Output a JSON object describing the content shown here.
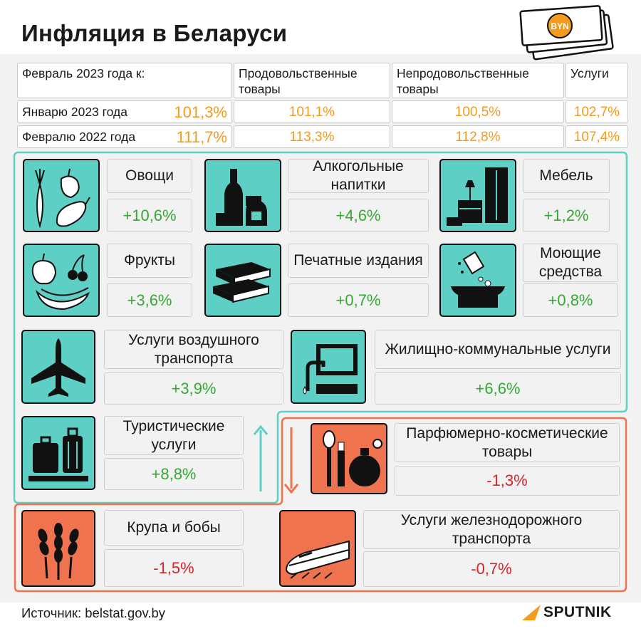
{
  "title": "Инфляция в Беларуси",
  "currency_badge": "BYN",
  "colors": {
    "teal": "#5ecfc4",
    "coral": "#f0734f",
    "orange_value": "#f29b1d",
    "green": "#36a836",
    "red": "#d8242a"
  },
  "table": {
    "corner": "Февраль 2023 года к:",
    "columns": [
      "Продовольственные товары",
      "Непродовольственные товары",
      "Услуги"
    ],
    "rows": [
      {
        "label": "Январю 2023 года",
        "total": "101,3%",
        "values": [
          "101,1%",
          "100,5%",
          "102,7%"
        ]
      },
      {
        "label": "Февралю 2022 года",
        "total": "111,7%",
        "values": [
          "113,3%",
          "112,8%",
          "107,4%"
        ]
      }
    ]
  },
  "items": {
    "vegetables": {
      "label": "Овощи",
      "value": "+10,6%",
      "icon": "vegetables-icon"
    },
    "alcohol": {
      "label": "Алкогольные напитки",
      "value": "+4,6%",
      "icon": "bottles-icon"
    },
    "furniture": {
      "label": "Мебель",
      "value": "+1,2%",
      "icon": "furniture-icon"
    },
    "fruits": {
      "label": "Фрукты",
      "value": "+3,6%",
      "icon": "fruits-icon"
    },
    "print": {
      "label": "Печатные издания",
      "value": "+0,7%",
      "icon": "books-icon"
    },
    "detergents": {
      "label": "Моющие средства",
      "value": "+0,8%",
      "icon": "detergent-icon"
    },
    "air": {
      "label": "Услуги воздушного транспорта",
      "value": "+3,9%",
      "icon": "airplane-icon"
    },
    "housing": {
      "label": "Жилищно-коммунальные услуги",
      "value": "+6,6%",
      "icon": "sink-icon"
    },
    "tourism": {
      "label": "Туристические услуги",
      "value": "+8,8%",
      "icon": "luggage-icon"
    },
    "perfume": {
      "label": "Парфюмерно-косметические товары",
      "value": "-1,3%",
      "icon": "cosmetics-icon"
    },
    "grain": {
      "label": "Крупа и бобы",
      "value": "-1,5%",
      "icon": "wheat-icon"
    },
    "rail": {
      "label": "Услуги железнодорожного транспорта",
      "value": "-0,7%",
      "icon": "train-icon"
    }
  },
  "source": "Источник: belstat.gov.by",
  "brand": "SPUTNIK"
}
